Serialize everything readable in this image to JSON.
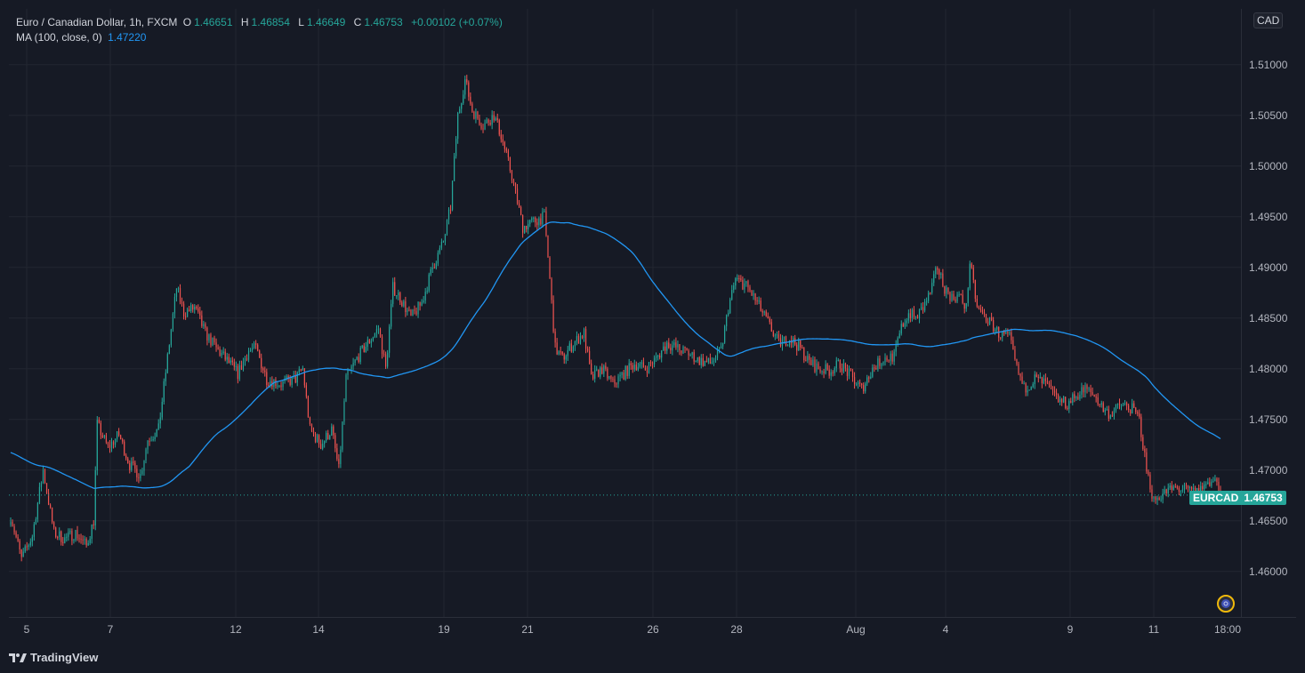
{
  "legend": {
    "title": "Euro / Canadian Dollar, 1h, FXCM",
    "open_label": "O",
    "open": "1.46651",
    "high_label": "H",
    "high": "1.46854",
    "low_label": "L",
    "low": "1.46649",
    "close_label": "C",
    "close": "1.46753",
    "change": "+0.00102 (+0.07%)",
    "ma_label": "MA (100, close, 0)",
    "ma_value": "1.47220"
  },
  "currency_badge": "CAD",
  "price_tag": {
    "symbol": "EURCAD",
    "value": "1.46753"
  },
  "branding": "TradingView",
  "colors": {
    "background": "#161a25",
    "grid": "#222631",
    "up": "#26a69a",
    "down": "#ef5350",
    "ma": "#2196f3"
  },
  "chart_data": {
    "type": "candlestick",
    "symbol": "EURCAD",
    "timeframe": "1h",
    "ylim": [
      1.4555,
      1.5155
    ],
    "y_ticks": [
      "1.46000",
      "1.46500",
      "1.47000",
      "1.47500",
      "1.48000",
      "1.48500",
      "1.49000",
      "1.49500",
      "1.50000",
      "1.50500",
      "1.51000"
    ],
    "x_ticks": [
      "5",
      "7",
      "12",
      "14",
      "19",
      "21",
      "26",
      "28",
      "Aug",
      "4",
      "9",
      "11",
      "18:00"
    ],
    "last_price": 1.46753,
    "price_path": [
      [
        0,
        1.4655
      ],
      [
        6,
        1.4612
      ],
      [
        12,
        1.4635
      ],
      [
        18,
        1.47
      ],
      [
        24,
        1.4638
      ],
      [
        30,
        1.4632
      ],
      [
        36,
        1.4638
      ],
      [
        42,
        1.4625
      ],
      [
        46,
        1.465
      ],
      [
        48,
        1.4745
      ],
      [
        54,
        1.4722
      ],
      [
        60,
        1.4735
      ],
      [
        66,
        1.4705
      ],
      [
        72,
        1.4695
      ],
      [
        76,
        1.473
      ],
      [
        82,
        1.474
      ],
      [
        88,
        1.4825
      ],
      [
        92,
        1.488
      ],
      [
        96,
        1.4855
      ],
      [
        102,
        1.486
      ],
      [
        108,
        1.4835
      ],
      [
        114,
        1.482
      ],
      [
        120,
        1.4808
      ],
      [
        126,
        1.4795
      ],
      [
        132,
        1.4818
      ],
      [
        136,
        1.482
      ],
      [
        142,
        1.479
      ],
      [
        150,
        1.4785
      ],
      [
        158,
        1.479
      ],
      [
        162,
        1.48
      ],
      [
        166,
        1.474
      ],
      [
        172,
        1.4725
      ],
      [
        178,
        1.474
      ],
      [
        182,
        1.47
      ],
      [
        186,
        1.479
      ],
      [
        192,
        1.481
      ],
      [
        198,
        1.4825
      ],
      [
        204,
        1.484
      ],
      [
        208,
        1.48
      ],
      [
        212,
        1.488
      ],
      [
        216,
        1.487
      ],
      [
        222,
        1.485
      ],
      [
        228,
        1.4865
      ],
      [
        234,
        1.49
      ],
      [
        240,
        1.4925
      ],
      [
        244,
        1.496
      ],
      [
        248,
        1.505
      ],
      [
        252,
        1.5085
      ],
      [
        256,
        1.5055
      ],
      [
        262,
        1.504
      ],
      [
        268,
        1.505
      ],
      [
        272,
        1.503
      ],
      [
        278,
        1.499
      ],
      [
        284,
        1.494
      ],
      [
        290,
        1.4945
      ],
      [
        296,
        1.495
      ],
      [
        298,
        1.491
      ],
      [
        302,
        1.482
      ],
      [
        306,
        1.481
      ],
      [
        312,
        1.4825
      ],
      [
        318,
        1.4835
      ],
      [
        322,
        1.479
      ],
      [
        328,
        1.48
      ],
      [
        334,
        1.4785
      ],
      [
        340,
        1.4795
      ],
      [
        346,
        1.4805
      ],
      [
        352,
        1.48
      ],
      [
        358,
        1.481
      ],
      [
        364,
        1.4825
      ],
      [
        370,
        1.482
      ],
      [
        376,
        1.4815
      ],
      [
        382,
        1.4808
      ],
      [
        388,
        1.4805
      ],
      [
        394,
        1.4818
      ],
      [
        398,
        1.486
      ],
      [
        402,
        1.4888
      ],
      [
        408,
        1.4882
      ],
      [
        414,
        1.4865
      ],
      [
        420,
        1.4845
      ],
      [
        426,
        1.4825
      ],
      [
        432,
        1.483
      ],
      [
        438,
        1.482
      ],
      [
        442,
        1.4808
      ],
      [
        448,
        1.48
      ],
      [
        454,
        1.4798
      ],
      [
        460,
        1.4805
      ],
      [
        466,
        1.4792
      ],
      [
        472,
        1.478
      ],
      [
        478,
        1.48
      ],
      [
        484,
        1.481
      ],
      [
        490,
        1.4812
      ],
      [
        494,
        1.484
      ],
      [
        498,
        1.4855
      ],
      [
        502,
        1.485
      ],
      [
        506,
        1.486
      ],
      [
        510,
        1.4875
      ],
      [
        514,
        1.49
      ],
      [
        518,
        1.488
      ],
      [
        522,
        1.487
      ],
      [
        526,
        1.4872
      ],
      [
        530,
        1.486
      ],
      [
        532,
        1.4905
      ],
      [
        536,
        1.486
      ],
      [
        542,
        1.4848
      ],
      [
        548,
        1.4835
      ],
      [
        554,
        1.483
      ],
      [
        558,
        1.48
      ],
      [
        562,
        1.478
      ],
      [
        568,
        1.479
      ],
      [
        574,
        1.4785
      ],
      [
        580,
        1.477
      ],
      [
        586,
        1.4765
      ],
      [
        592,
        1.4775
      ],
      [
        596,
        1.478
      ],
      [
        602,
        1.4772
      ],
      [
        606,
        1.476
      ],
      [
        610,
        1.4755
      ],
      [
        616,
        1.4765
      ],
      [
        622,
        1.476
      ],
      [
        626,
        1.475
      ],
      [
        630,
        1.47
      ],
      [
        634,
        1.467
      ],
      [
        640,
        1.4678
      ],
      [
        646,
        1.4682
      ],
      [
        652,
        1.468
      ],
      [
        658,
        1.4678
      ],
      [
        664,
        1.4688
      ],
      [
        668,
        1.469
      ],
      [
        671,
        1.46753
      ]
    ]
  }
}
